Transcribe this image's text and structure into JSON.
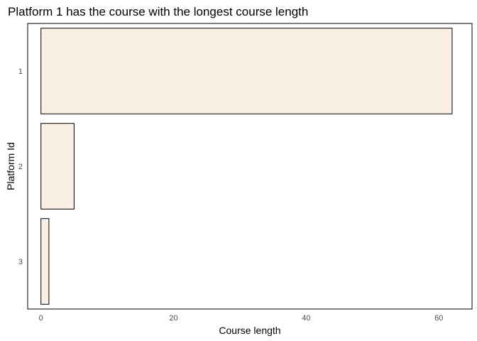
{
  "chart_data": {
    "type": "bar",
    "orientation": "horizontal",
    "title": "Platform 1 has the course with the longest course length",
    "xlabel": "Course length",
    "ylabel": "Platform Id",
    "categories": [
      "1",
      "2",
      "3"
    ],
    "values": [
      62,
      5,
      1.2
    ],
    "xlim": [
      -2,
      65
    ],
    "x_ticks": [
      0,
      20,
      40,
      60
    ],
    "grid": false,
    "legend": "none",
    "colors": {
      "bar_fill": "#faefe4",
      "bar_stroke": "#000000",
      "panel_border": "#000000",
      "tick_label": "#4d4d4d"
    }
  }
}
